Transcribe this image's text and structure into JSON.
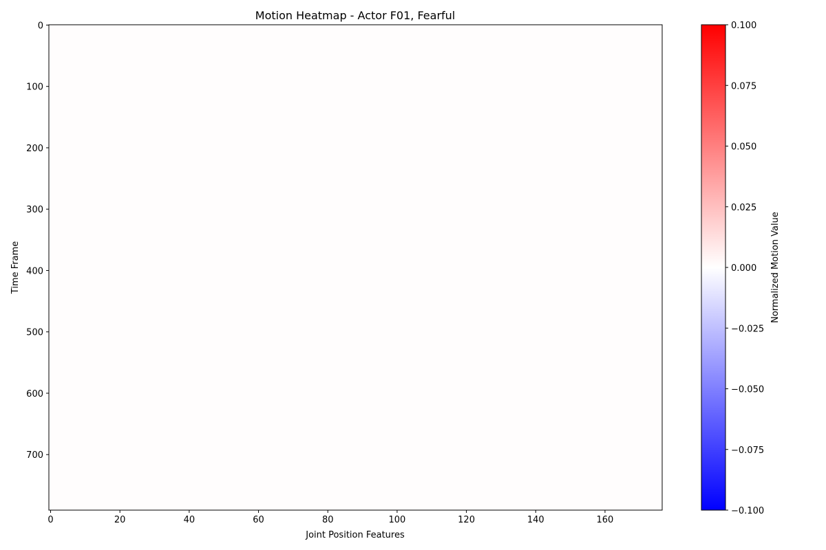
{
  "chart_data": {
    "type": "heatmap",
    "title": "Motion Heatmap - Actor F01, Fearful",
    "xlabel": "Joint Position Features",
    "ylabel": "Time Frame",
    "xlim": [
      -0.5,
      176.5
    ],
    "ylim": [
      790.5,
      -0.5
    ],
    "x_ticks": [
      0,
      20,
      40,
      60,
      80,
      100,
      120,
      140,
      160
    ],
    "y_ticks": [
      0,
      100,
      200,
      300,
      400,
      500,
      600,
      700
    ],
    "n_features": 177,
    "n_frames": 791,
    "values_summary": "all cells approximately 0 (near-white)",
    "fill_color": "#fffdfd",
    "colorbar": {
      "label": "Normalized Motion Value",
      "cmap": "bwr",
      "vmin": -0.1,
      "vmax": 0.1,
      "ticks": [
        -0.1,
        -0.075,
        -0.05,
        -0.025,
        0.0,
        0.025,
        0.05,
        0.075,
        0.1
      ],
      "tick_labels": [
        "−0.100",
        "−0.075",
        "−0.050",
        "−0.025",
        "0.000",
        "0.025",
        "0.050",
        "0.075",
        "0.100"
      ],
      "color_low": "#0000ff",
      "color_mid": "#ffffff",
      "color_high": "#ff0000"
    }
  }
}
